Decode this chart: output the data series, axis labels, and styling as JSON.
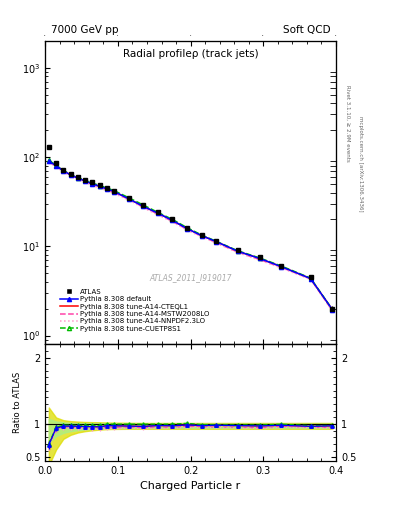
{
  "title": "Radial profileρ (track jets)",
  "top_left_label": "7000 GeV pp",
  "top_right_label": "Soft QCD",
  "right_label_top": "Rivet 3.1.10, ≥ 2.9M events",
  "right_label_bot": "mcplots.cern.ch [arXiv:1306.3436]",
  "watermark": "ATLAS_2011_I919017",
  "xlabel": "Charged Particle r",
  "ylabel_ratio": "Ratio to ATLAS",
  "x": [
    0.005,
    0.015,
    0.025,
    0.035,
    0.045,
    0.055,
    0.065,
    0.075,
    0.085,
    0.095,
    0.115,
    0.135,
    0.155,
    0.175,
    0.195,
    0.215,
    0.235,
    0.265,
    0.295,
    0.325,
    0.365,
    0.395
  ],
  "atlas_y": [
    130,
    85,
    72,
    65,
    60,
    56,
    52,
    49,
    45,
    42,
    35,
    29,
    24,
    20,
    16,
    13.5,
    11.5,
    9.0,
    7.5,
    6.0,
    4.5,
    2.0
  ],
  "atlas_yerr": [
    8,
    4,
    3,
    2.5,
    2.2,
    2.0,
    1.8,
    1.6,
    1.5,
    1.4,
    1.1,
    0.9,
    0.7,
    0.6,
    0.45,
    0.38,
    0.32,
    0.28,
    0.22,
    0.2,
    0.16,
    0.12
  ],
  "pythia_default_y": [
    90,
    80,
    70,
    63,
    58,
    54,
    50,
    47,
    44,
    41,
    34,
    28,
    23.5,
    19.5,
    15.8,
    13.2,
    11.3,
    8.8,
    7.3,
    5.9,
    4.35,
    1.95
  ],
  "pythia_cteql1_y": [
    90,
    80,
    70,
    63,
    58,
    54,
    50,
    47,
    44,
    41,
    34,
    28,
    23.5,
    19.5,
    15.8,
    13.2,
    11.3,
    8.8,
    7.3,
    5.9,
    4.35,
    1.95
  ],
  "pythia_mstw_y": [
    88,
    79,
    69,
    62,
    57,
    53,
    49,
    46,
    43,
    40,
    33.5,
    27.5,
    23,
    19,
    15.5,
    13.0,
    11.0,
    8.6,
    7.1,
    5.8,
    4.3,
    1.9
  ],
  "pythia_nnpdf_y": [
    87,
    78,
    68,
    61,
    56,
    52,
    48,
    45,
    42,
    39,
    33,
    27,
    22.5,
    18.8,
    15.2,
    12.8,
    10.9,
    8.5,
    7.0,
    5.7,
    4.25,
    1.88
  ],
  "pythia_cuetp_y": [
    92,
    81,
    71,
    64,
    59,
    55,
    51,
    48,
    45,
    42,
    35,
    29,
    24,
    20,
    16.2,
    13.4,
    11.4,
    8.9,
    7.4,
    6.0,
    4.4,
    1.96
  ],
  "ratio_default": [
    0.69,
    0.94,
    0.97,
    0.97,
    0.967,
    0.964,
    0.962,
    0.959,
    0.978,
    0.976,
    0.971,
    0.966,
    0.979,
    0.975,
    0.988,
    0.978,
    0.983,
    0.978,
    0.973,
    0.983,
    0.967,
    0.975
  ],
  "ratio_cteql1": [
    0.69,
    0.94,
    0.97,
    0.97,
    0.967,
    0.964,
    0.962,
    0.959,
    0.978,
    0.976,
    0.971,
    0.966,
    0.979,
    0.975,
    0.988,
    0.978,
    0.983,
    0.978,
    0.973,
    0.983,
    0.967,
    0.975
  ],
  "ratio_mstw": [
    0.677,
    0.929,
    0.958,
    0.954,
    0.95,
    0.946,
    0.942,
    0.939,
    0.956,
    0.952,
    0.957,
    0.948,
    0.958,
    0.95,
    0.969,
    0.963,
    0.957,
    0.956,
    0.947,
    0.967,
    0.956,
    0.95
  ],
  "ratio_nnpdf": [
    0.669,
    0.918,
    0.944,
    0.938,
    0.933,
    0.929,
    0.923,
    0.918,
    0.933,
    0.929,
    0.943,
    0.931,
    0.938,
    0.94,
    0.95,
    0.948,
    0.948,
    0.944,
    0.933,
    0.95,
    0.944,
    0.94
  ],
  "ratio_cuetp": [
    0.708,
    0.953,
    0.986,
    0.985,
    0.983,
    0.982,
    0.981,
    0.98,
    1.0,
    1.0,
    1.0,
    1.0,
    1.0,
    1.0,
    1.013,
    0.993,
    0.991,
    0.989,
    0.987,
    1.0,
    0.978,
    0.98
  ],
  "ratio_default_err": [
    0.06,
    0.04,
    0.03,
    0.025,
    0.022,
    0.02,
    0.019,
    0.018,
    0.017,
    0.016,
    0.014,
    0.012,
    0.01,
    0.009,
    0.008,
    0.007,
    0.007,
    0.006,
    0.006,
    0.006,
    0.005,
    0.006
  ],
  "ratio_cteql1_err": [
    0.06,
    0.04,
    0.03,
    0.025,
    0.022,
    0.02,
    0.019,
    0.018,
    0.017,
    0.016,
    0.014,
    0.012,
    0.01,
    0.009,
    0.008,
    0.007,
    0.007,
    0.006,
    0.006,
    0.006,
    0.005,
    0.006
  ],
  "ratio_mstw_err": [
    0.06,
    0.04,
    0.03,
    0.025,
    0.022,
    0.02,
    0.019,
    0.018,
    0.017,
    0.016,
    0.014,
    0.012,
    0.01,
    0.009,
    0.008,
    0.007,
    0.007,
    0.006,
    0.006,
    0.006,
    0.005,
    0.006
  ],
  "ratio_nnpdf_err": [
    0.06,
    0.04,
    0.03,
    0.025,
    0.022,
    0.02,
    0.019,
    0.018,
    0.017,
    0.016,
    0.014,
    0.012,
    0.01,
    0.009,
    0.008,
    0.007,
    0.007,
    0.006,
    0.006,
    0.006,
    0.005,
    0.006
  ],
  "ratio_cuetp_err": [
    0.06,
    0.04,
    0.03,
    0.025,
    0.022,
    0.02,
    0.019,
    0.018,
    0.017,
    0.016,
    0.014,
    0.012,
    0.01,
    0.009,
    0.008,
    0.007,
    0.007,
    0.006,
    0.006,
    0.006,
    0.005,
    0.006
  ],
  "band_yellow_upper": [
    1.25,
    1.1,
    1.06,
    1.045,
    1.038,
    1.033,
    1.03,
    1.028,
    1.025,
    1.023,
    1.02,
    1.018,
    1.018,
    1.018,
    1.018,
    1.018,
    1.018,
    1.018,
    1.018,
    1.018,
    1.018,
    1.018
  ],
  "band_yellow_lower": [
    0.38,
    0.62,
    0.78,
    0.84,
    0.875,
    0.895,
    0.908,
    0.918,
    0.925,
    0.928,
    0.93,
    0.93,
    0.93,
    0.93,
    0.93,
    0.93,
    0.93,
    0.93,
    0.93,
    0.93,
    0.93,
    0.93
  ],
  "band_green_upper": [
    1.08,
    1.04,
    1.025,
    1.018,
    1.015,
    1.013,
    1.012,
    1.012,
    1.01,
    1.01,
    1.008,
    1.007,
    1.007,
    1.007,
    1.007,
    1.007,
    1.007,
    1.007,
    1.007,
    1.007,
    1.007,
    1.007
  ],
  "band_green_lower": [
    0.72,
    0.82,
    0.87,
    0.895,
    0.91,
    0.92,
    0.928,
    0.933,
    0.937,
    0.94,
    0.942,
    0.943,
    0.943,
    0.943,
    0.943,
    0.943,
    0.943,
    0.943,
    0.943,
    0.943,
    0.943,
    0.943
  ],
  "color_atlas": "#000000",
  "color_default": "#0000ff",
  "color_cteql1": "#ff0000",
  "color_mstw": "#ff44aa",
  "color_nnpdf": "#ff99cc",
  "color_cuetp": "#00bb00",
  "color_yellow": "#dddd00",
  "color_green": "#aaee88",
  "xlim": [
    0.0,
    0.4
  ],
  "ylim_main": [
    0.8,
    2000
  ],
  "ylim_ratio": [
    0.45,
    2.2
  ]
}
